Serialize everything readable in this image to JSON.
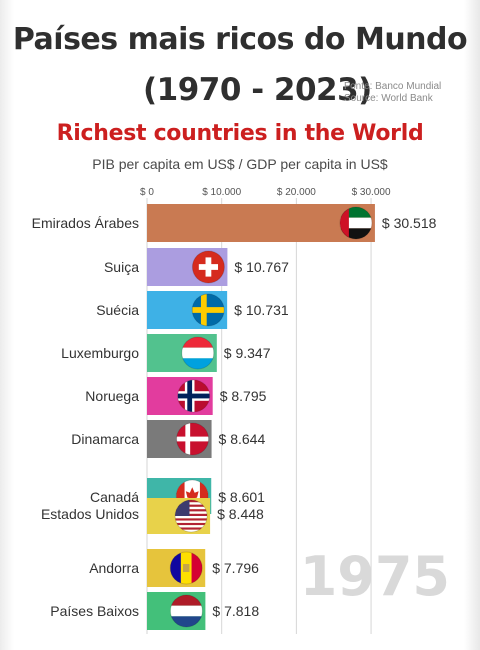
{
  "header": {
    "title": "Países mais ricos do Mundo",
    "years": "(1970 - 2023)",
    "source_pt": "Fonte: Banco Mundial",
    "source_en": "Source: World Bank",
    "subtitle": "Richest countries in the World",
    "unit": "PIB per capita em US$ / GDP per capita in US$"
  },
  "current_year": "1975",
  "chart_data": {
    "type": "bar",
    "orientation": "horizontal",
    "xlim": [
      0,
      32000
    ],
    "ticks": [
      0,
      10000,
      20000,
      30000
    ],
    "tick_labels": [
      "$ 0",
      "$ 10.000",
      "$ 20.000",
      "$ 30.000"
    ],
    "grid": true,
    "categories": [
      "Emirados Árabes",
      "Suiça",
      "Suécia",
      "Luxemburgo",
      "Noruega",
      "Dinamarca",
      "Canadá",
      "Estados Unidos",
      "Andorra",
      "Países Baixos"
    ],
    "values": [
      30518,
      10767,
      10731,
      9347,
      8795,
      8644,
      8601,
      8448,
      7796,
      7818
    ],
    "value_labels": [
      "$ 30.518",
      "$ 10.767",
      "$ 10.731",
      "$ 9.347",
      "$ 8.795",
      "$ 8.644",
      "$ 8.601",
      "$ 8.448",
      "$ 7.796",
      "$ 7.818"
    ],
    "colors": [
      "#c97a52",
      "#ab9de0",
      "#3eb1e6",
      "#52c28e",
      "#e23c9e",
      "#7a7a7a",
      "#3fb6a8",
      "#e8d24a",
      "#e6c43c",
      "#43c07a"
    ],
    "flags": [
      "uae",
      "switzerland",
      "sweden",
      "luxembourg",
      "norway",
      "denmark",
      "canada",
      "usa",
      "andorra",
      "netherlands"
    ]
  }
}
